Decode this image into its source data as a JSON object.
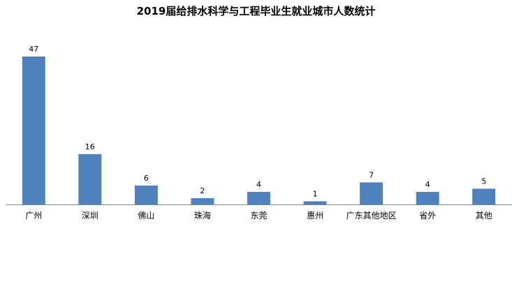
{
  "chart_data": {
    "type": "bar",
    "title": "2019届给排水科学与工程毕业生就业城市人数统计",
    "categories": [
      "广州",
      "深圳",
      "佛山",
      "珠海",
      "东莞",
      "惠州",
      "广东其他地区",
      "省外",
      "其他"
    ],
    "values": [
      47,
      16,
      6,
      2,
      4,
      1,
      7,
      4,
      5
    ],
    "ylim": [
      0,
      47
    ],
    "grid": false,
    "legend": "none",
    "bar_color": "#4f81bd"
  }
}
